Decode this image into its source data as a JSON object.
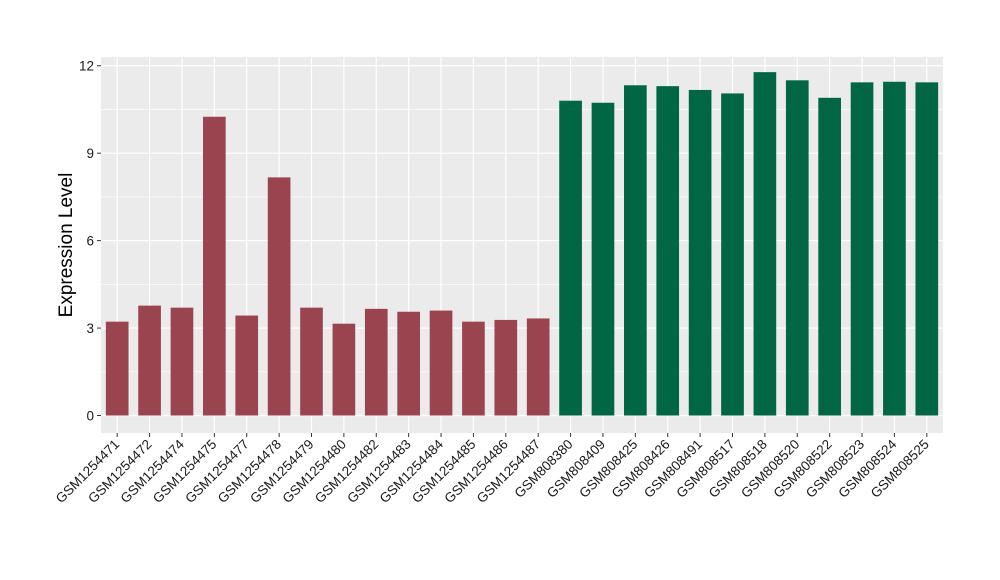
{
  "colors": {
    "panel_background": "#ebebeb",
    "grid_major": "#ffffff",
    "group_1": "#9a4450",
    "group_2": "#006644",
    "tick": "#333333"
  },
  "chart_data": {
    "type": "bar",
    "ylabel": "Expression Level",
    "xlabel": "",
    "ylim": [
      -0.6,
      12.3
    ],
    "yticks": [
      0,
      3,
      6,
      9,
      12
    ],
    "grid": true,
    "legend": "none",
    "categories": [
      "GSM1254471",
      "GSM1254472",
      "GSM1254474",
      "GSM1254475",
      "GSM1254477",
      "GSM1254478",
      "GSM1254479",
      "GSM1254480",
      "GSM1254482",
      "GSM1254483",
      "GSM1254484",
      "GSM1254485",
      "GSM1254486",
      "GSM1254487",
      "GSM808380",
      "GSM808409",
      "GSM808425",
      "GSM808426",
      "GSM808491",
      "GSM808517",
      "GSM808518",
      "GSM808520",
      "GSM808522",
      "GSM808523",
      "GSM808524",
      "GSM808525"
    ],
    "values": [
      3.22,
      3.77,
      3.7,
      10.25,
      3.43,
      8.17,
      3.7,
      3.15,
      3.66,
      3.56,
      3.6,
      3.22,
      3.28,
      3.33,
      10.8,
      10.73,
      11.33,
      11.3,
      11.17,
      11.05,
      11.78,
      11.5,
      10.9,
      11.43,
      11.45,
      11.43
    ],
    "bar_group": [
      1,
      1,
      1,
      1,
      1,
      1,
      1,
      1,
      1,
      1,
      1,
      1,
      1,
      1,
      2,
      2,
      2,
      2,
      2,
      2,
      2,
      2,
      2,
      2,
      2,
      2
    ]
  }
}
